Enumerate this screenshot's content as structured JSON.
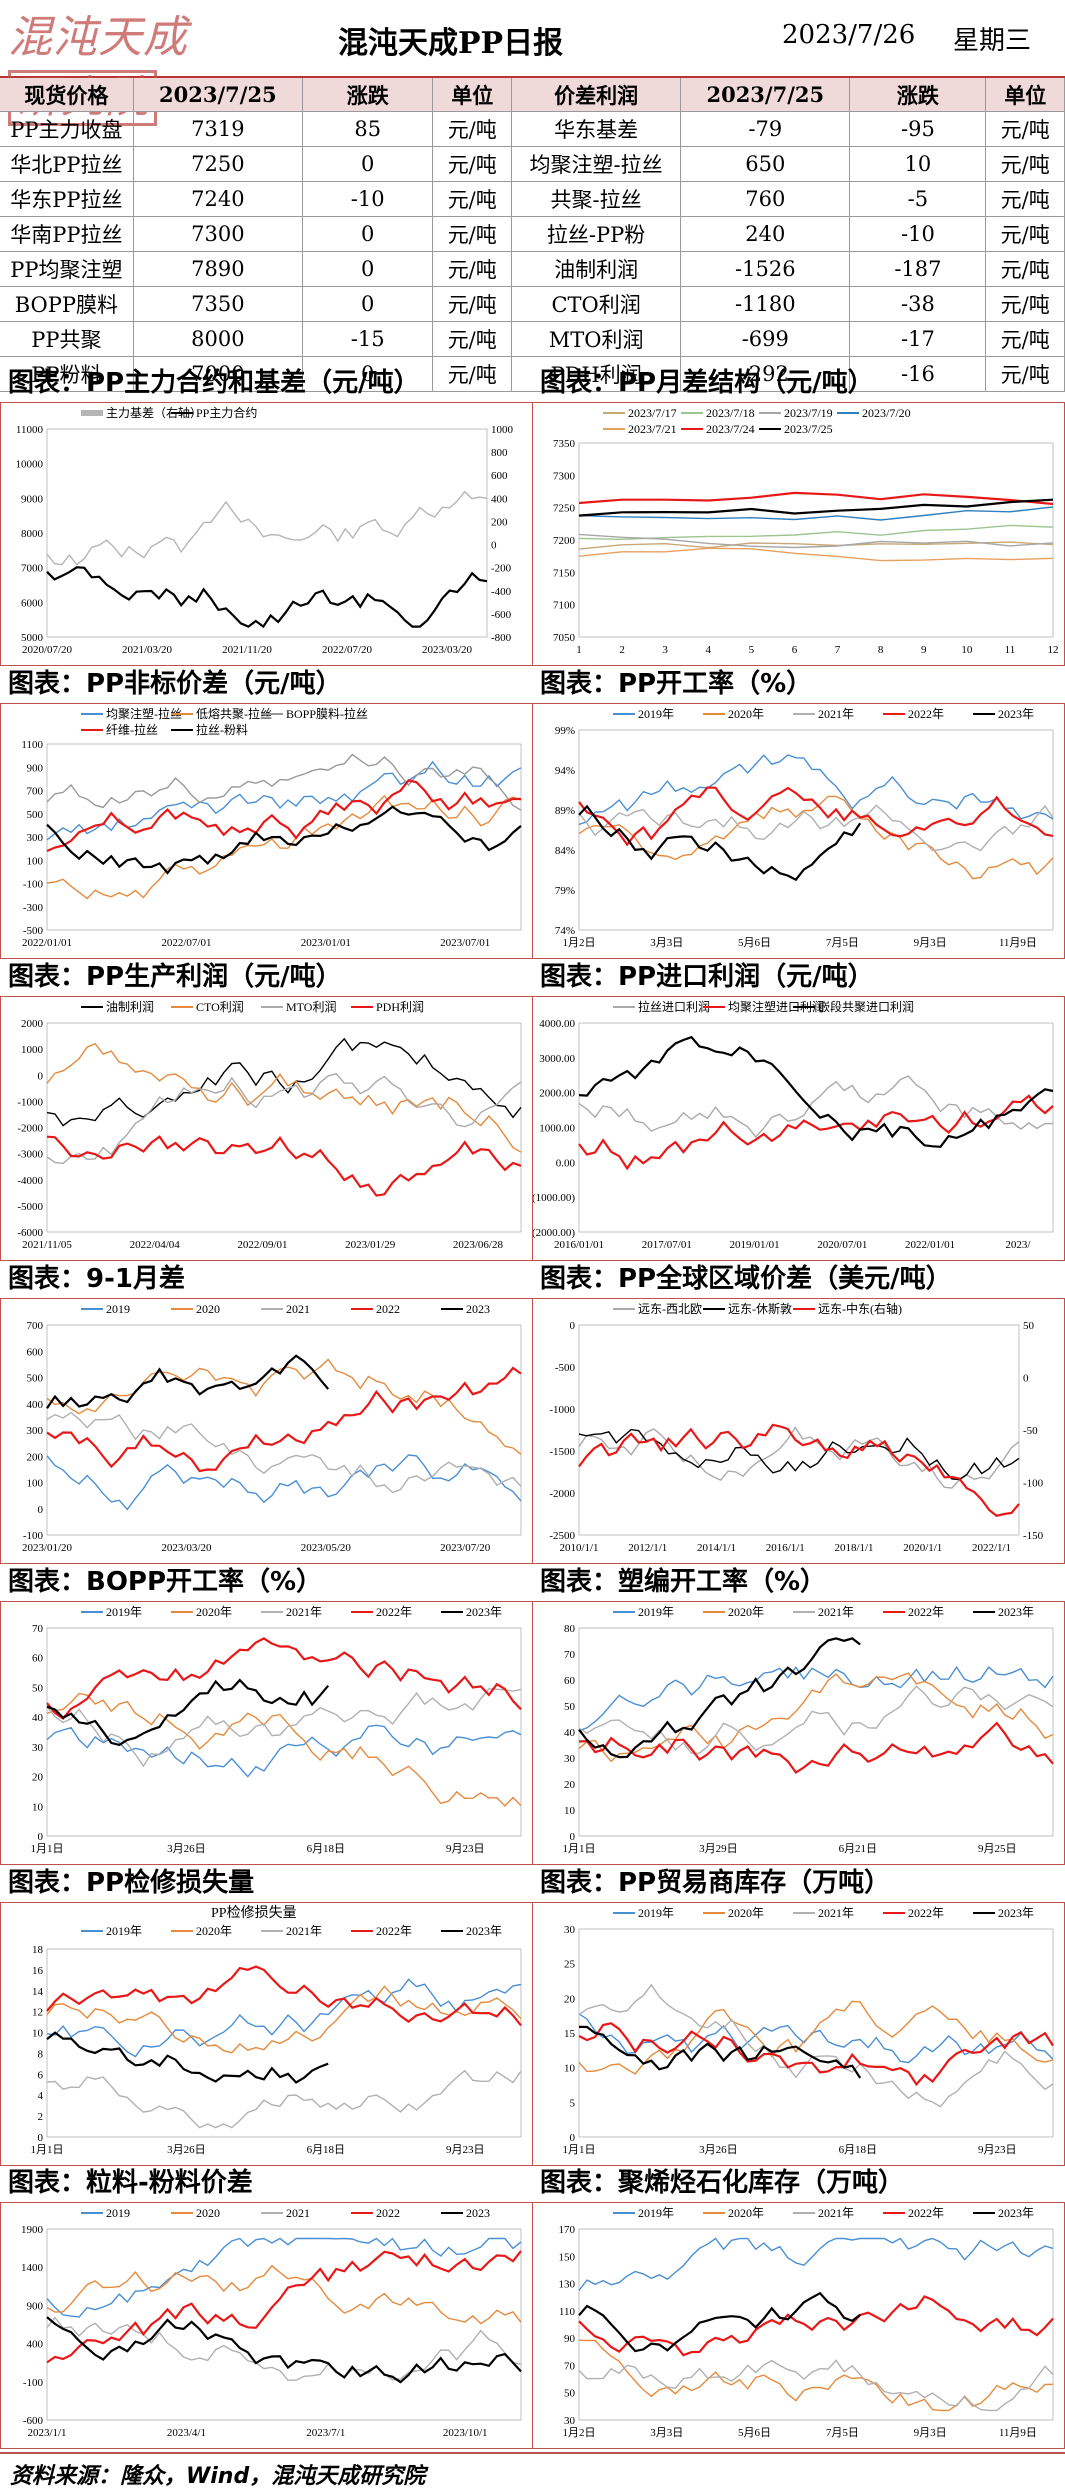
{
  "header": {
    "logo": "混沌天成研究院",
    "title": "混沌天成PP日报",
    "date": "2023/7/26",
    "weekday": "星期三"
  },
  "table": {
    "headers": [
      "现货价格",
      "2023/7/25",
      "涨跌",
      "单位",
      "价差利润",
      "2023/7/25",
      "涨跌",
      "单位"
    ],
    "rows": [
      [
        "PP主力收盘",
        "7319",
        "85",
        "元/吨",
        "华东基差",
        "-79",
        "-95",
        "元/吨"
      ],
      [
        "华北PP拉丝",
        "7250",
        "0",
        "元/吨",
        "均聚注塑-拉丝",
        "650",
        "10",
        "元/吨"
      ],
      [
        "华东PP拉丝",
        "7240",
        "-10",
        "元/吨",
        "共聚-拉丝",
        "760",
        "-5",
        "元/吨"
      ],
      [
        "华南PP拉丝",
        "7300",
        "0",
        "元/吨",
        "拉丝-PP粉",
        "240",
        "-10",
        "元/吨"
      ],
      [
        "PP均聚注塑",
        "7890",
        "0",
        "元/吨",
        "油制利润",
        "-1526",
        "-187",
        "元/吨"
      ],
      [
        "BOPP膜料",
        "7350",
        "0",
        "元/吨",
        "CTO利润",
        "-1180",
        "-38",
        "元/吨"
      ],
      [
        "PP共聚",
        "8000",
        "-15",
        "元/吨",
        "MTO利润",
        "-699",
        "-17",
        "元/吨"
      ],
      [
        "PP粉料",
        "7000",
        "0",
        "元/吨",
        "PDH利润",
        "-292",
        "-16",
        "元/吨"
      ]
    ]
  },
  "sections": [
    {
      "title": "图表：PP主力合约和基差（元/吨）",
      "legend": [
        "主力基差（右轴）",
        "PP主力合约"
      ],
      "xticks": [
        "2020/07/20",
        "2021/03/20",
        "2021/11/20",
        "2022/07/20",
        "2023/03/20"
      ],
      "yleft": [
        "11000",
        "10000",
        "9000",
        "8000",
        "7000",
        "6000",
        "5000"
      ],
      "yright": [
        "1000",
        "800",
        "600",
        "400",
        "200",
        "0",
        "-200",
        "-400",
        "-600",
        "-800"
      ]
    },
    {
      "title": "图表：PP月差结构（元/吨）",
      "legend": [
        "2023/7/17",
        "2023/7/18",
        "2023/7/19",
        "2023/7/20",
        "2023/7/21",
        "2023/7/24",
        "2023/7/25"
      ],
      "xticks": [
        "1",
        "2",
        "3",
        "4",
        "5",
        "6",
        "7",
        "8",
        "9",
        "10",
        "11",
        "12"
      ],
      "yleft": [
        "7350",
        "7300",
        "7250",
        "7200",
        "7150",
        "7100",
        "7050"
      ]
    },
    {
      "title": "图表：PP非标价差（元/吨）",
      "legend": [
        "均聚注塑-拉丝",
        "低熔共聚-拉丝",
        "BOPP膜料-拉丝",
        "纤维-拉丝",
        "拉丝-粉料"
      ],
      "xticks": [
        "2022/01/01",
        "2022/07/01",
        "2023/01/01",
        "2023/07/01"
      ],
      "yleft": [
        "1100",
        "900",
        "700",
        "500",
        "300",
        "100",
        "-100",
        "-300",
        "-500"
      ]
    },
    {
      "title": "图表：PP开工率（%）",
      "legend": [
        "2019年",
        "2020年",
        "2021年",
        "2022年",
        "2023年"
      ],
      "xticks": [
        "1月2日",
        "3月3日",
        "5月6日",
        "7月5日",
        "9月3日",
        "11月9日"
      ],
      "yleft": [
        "99%",
        "94%",
        "89%",
        "84%",
        "79%",
        "74%"
      ]
    },
    {
      "title": "图表：PP生产利润（元/吨）",
      "legend": [
        "油制利润",
        "CTO利润",
        "MTO利润",
        "PDH利润"
      ],
      "xticks": [
        "2021/11/05",
        "2022/04/04",
        "2022/09/01",
        "2023/01/29",
        "2023/06/28"
      ],
      "yleft": [
        "2000",
        "1000",
        "0",
        "-1000",
        "-2000",
        "-3000",
        "-4000",
        "-5000",
        "-6000"
      ]
    },
    {
      "title": "图表：PP进口利润（元/吨）",
      "legend": [
        "拉丝进口利润",
        "均聚注塑进口利润",
        "嵌段共聚进口利润"
      ],
      "xticks": [
        "2016/01/01",
        "2017/07/01",
        "2019/01/01",
        "2020/07/01",
        "2022/01/01",
        "2023/"
      ],
      "yleft": [
        "4000.00",
        "3000.00",
        "2000.00",
        "1000.00",
        "0.00",
        "(1000.00)",
        "(2000.00)"
      ]
    },
    {
      "title": "图表：9-1月差",
      "legend": [
        "2019",
        "2020",
        "2021",
        "2022",
        "2023"
      ],
      "xticks": [
        "2023/01/20",
        "2023/03/20",
        "2023/05/20",
        "2023/07/20"
      ],
      "yleft": [
        "700",
        "600",
        "500",
        "400",
        "300",
        "200",
        "100",
        "0",
        "-100"
      ]
    },
    {
      "title": "图表：PP全球区域价差（美元/吨）",
      "legend": [
        "远东-西北欧",
        "远东-休斯敦",
        "远东-中东(右轴)"
      ],
      "xticks": [
        "2010/1/1",
        "2012/1/1",
        "2014/1/1",
        "2016/1/1",
        "2018/1/1",
        "2020/1/1",
        "2022/1/1"
      ],
      "yleft": [
        "0",
        "-500",
        "-1000",
        "-1500",
        "-2000",
        "-2500"
      ],
      "yright": [
        "50",
        "0",
        "-50",
        "-100",
        "-150"
      ]
    },
    {
      "title": "图表：BOPP开工率（%）",
      "legend": [
        "2019年",
        "2020年",
        "2021年",
        "2022年",
        "2023年"
      ],
      "xticks": [
        "1月1日",
        "3月26日",
        "6月18日",
        "9月23日"
      ],
      "yleft": [
        "70",
        "60",
        "50",
        "40",
        "30",
        "20",
        "10",
        "0"
      ]
    },
    {
      "title": "图表：塑编开工率（%）",
      "legend": [
        "2019年",
        "2020年",
        "2021年",
        "2022年",
        "2023年"
      ],
      "xticks": [
        "1月1日",
        "3月29日",
        "6月21日",
        "9月25日"
      ],
      "yleft": [
        "80",
        "70",
        "60",
        "50",
        "40",
        "30",
        "20",
        "10",
        "0"
      ]
    },
    {
      "title": "图表：PP检修损失量",
      "legend": [
        "2019年",
        "2020年",
        "2021年",
        "2022年",
        "2023年"
      ],
      "subtitle": "PP检修损失量",
      "xticks": [
        "1月1日",
        "3月26日",
        "6月18日",
        "9月23日"
      ],
      "yleft": [
        "18",
        "16",
        "14",
        "12",
        "10",
        "8",
        "6",
        "4",
        "2",
        "0"
      ]
    },
    {
      "title": "图表：PP贸易商库存（万吨）",
      "legend": [
        "2019年",
        "2020年",
        "2021年",
        "2022年",
        "2023年"
      ],
      "xticks": [
        "1月1日",
        "3月26日",
        "6月18日",
        "9月23日"
      ],
      "yleft": [
        "30",
        "25",
        "20",
        "15",
        "10",
        "5",
        "0"
      ]
    },
    {
      "title": "图表：粒料-粉料价差",
      "legend": [
        "2019",
        "2020",
        "2021",
        "2022",
        "2023"
      ],
      "xticks": [
        "2023/1/1",
        "2023/4/1",
        "2023/7/1",
        "2023/10/1"
      ],
      "yleft": [
        "1900",
        "1400",
        "900",
        "400",
        "-100",
        "-600"
      ]
    },
    {
      "title": "图表：聚烯烃石化库存（万吨）",
      "legend": [
        "2019年",
        "2020年",
        "2021年",
        "2022年",
        "2023年"
      ],
      "xticks": [
        "1月2日",
        "3月3日",
        "5月6日",
        "7月5日",
        "9月3日",
        "11月9日"
      ],
      "yleft": [
        "170",
        "150",
        "130",
        "110",
        "90",
        "70",
        "50",
        "30"
      ]
    }
  ],
  "colors": {
    "2019": "#4a8fd4",
    "2020": "#e58a3c",
    "2021": "#b0b0b0",
    "2022": "#e81818",
    "2023": "#000000",
    "accent": "#c0504d"
  },
  "footer": "资料来源：隆众，Wind，混沌天成研究院"
}
